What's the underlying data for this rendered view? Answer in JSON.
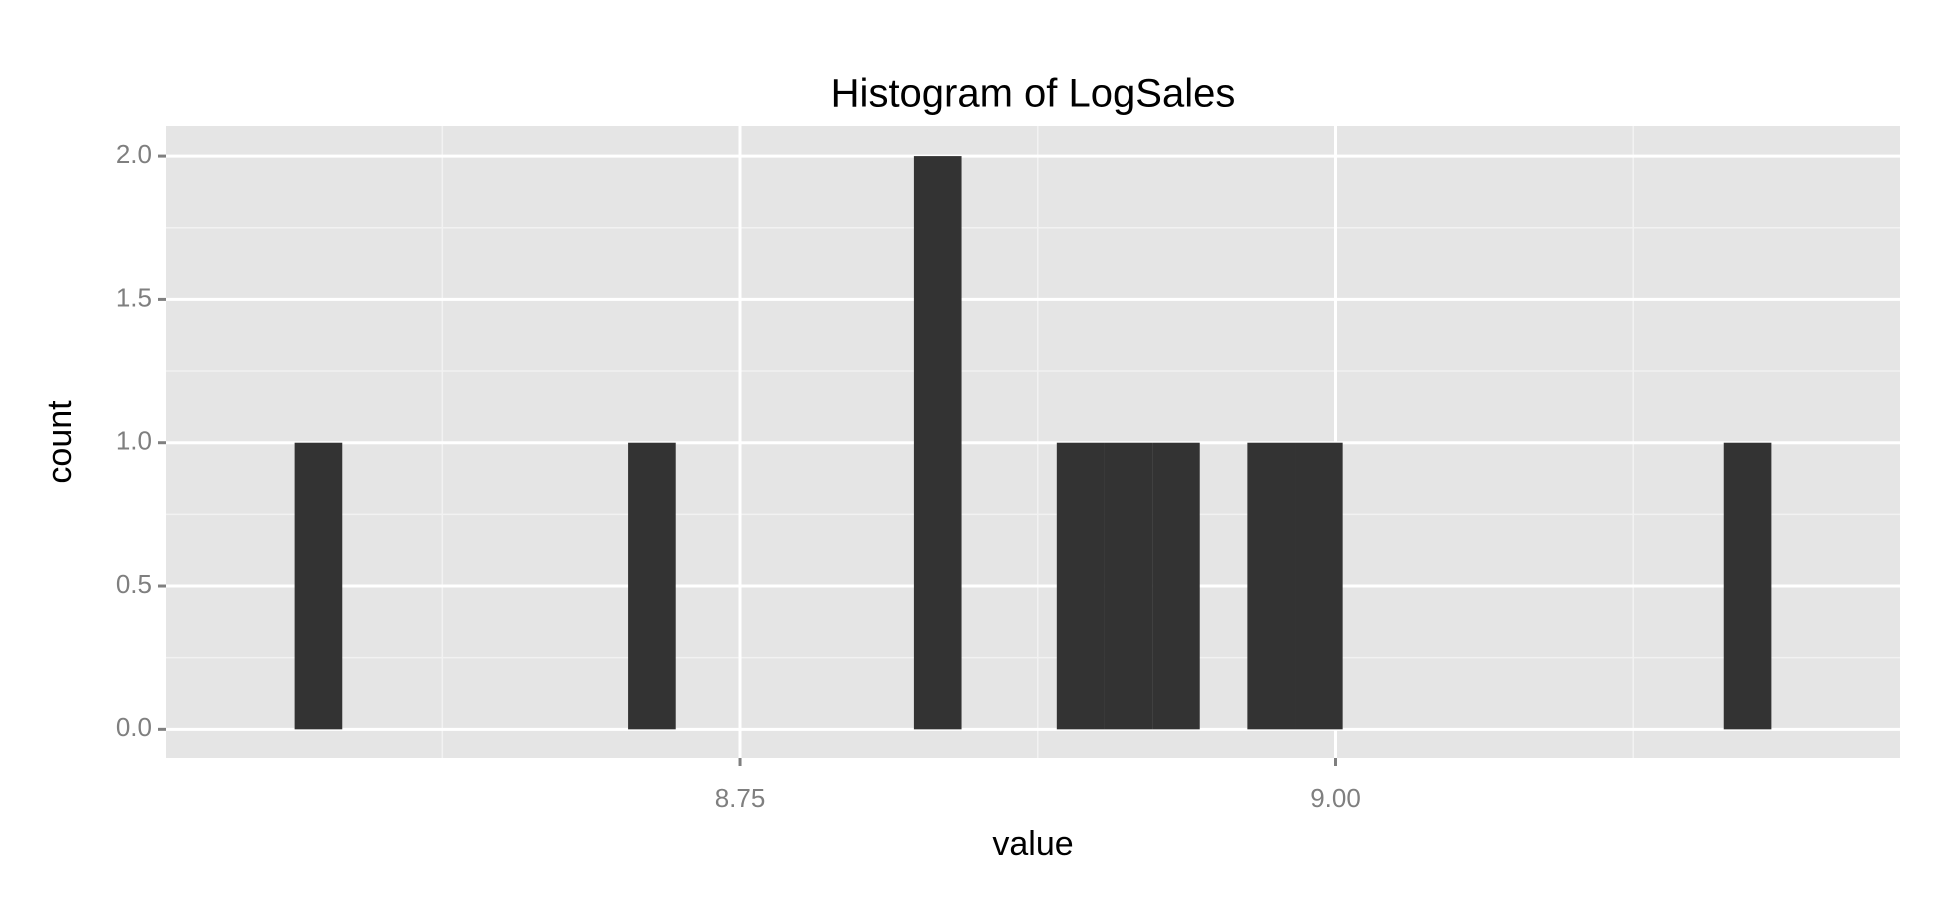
{
  "chart_data": {
    "type": "histogram",
    "title": "Histogram of LogSales",
    "x_label": "value",
    "y_label": "count",
    "bins": [
      8.563,
      8.583,
      8.603,
      8.623,
      8.643,
      8.663,
      8.683,
      8.703,
      8.723,
      8.743,
      8.763,
      8.783,
      8.803,
      8.823,
      8.843,
      8.863,
      8.883,
      8.903,
      8.923,
      8.943,
      8.963,
      8.983,
      9.003,
      9.023,
      9.043,
      9.063,
      9.083,
      9.103,
      9.123,
      9.143,
      9.163,
      9.183
    ],
    "values": [
      1,
      0,
      0,
      0,
      0,
      0,
      0,
      1,
      0,
      0,
      0,
      0,
      0,
      2,
      0,
      0,
      1,
      1,
      1,
      0,
      1,
      1,
      0,
      0,
      0,
      0,
      0,
      0,
      0,
      0,
      1
    ],
    "color": "#333333",
    "xlim": [
      8.509,
      9.237
    ],
    "xticks": [
      8.75,
      {
        "value": 9,
        "label": "9.00"
      }
    ],
    "xminor": [
      8.625,
      8.875,
      9.125
    ],
    "ylim": [
      -0.1,
      2.105
    ],
    "yticks": [
      {
        "value": 0,
        "label": "0.0"
      },
      0.5,
      {
        "value": 1,
        "label": "1.0"
      },
      1.5,
      {
        "value": 2,
        "label": "2.0"
      }
    ],
    "yminor": [
      0.25,
      0.75,
      1.25,
      1.75
    ],
    "grid": true
  }
}
